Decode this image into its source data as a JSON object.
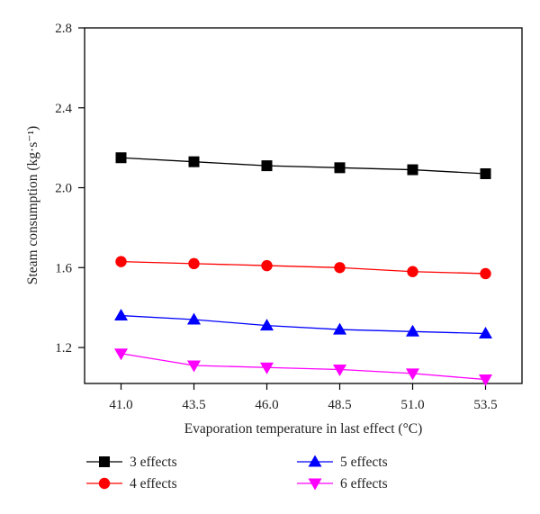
{
  "chart_data": {
    "type": "line",
    "title": "",
    "xlabel": "Evaporation temperature in last effect (°C)",
    "ylabel": "Steam consumption (kg·s⁻¹)",
    "categories": [
      "41.0",
      "43.5",
      "46.0",
      "48.5",
      "51.0",
      "53.5"
    ],
    "ylim": [
      1.02,
      2.8
    ],
    "yticks": [
      "1.2",
      "1.6",
      "2.0",
      "2.4",
      "2.8"
    ],
    "grid": false,
    "legend_position": "bottom",
    "series": [
      {
        "name": "3 effects",
        "color": "#000000",
        "marker": "square",
        "values": [
          2.15,
          2.13,
          2.11,
          2.1,
          2.09,
          2.07
        ]
      },
      {
        "name": "4 effects",
        "color": "#ff0000",
        "marker": "circle",
        "values": [
          1.63,
          1.62,
          1.61,
          1.6,
          1.58,
          1.57
        ]
      },
      {
        "name": "5 effects",
        "color": "#0000ff",
        "marker": "triangle-up",
        "values": [
          1.36,
          1.34,
          1.31,
          1.29,
          1.28,
          1.27
        ]
      },
      {
        "name": "6 effects",
        "color": "#ff00ff",
        "marker": "triangle-down",
        "values": [
          1.17,
          1.11,
          1.1,
          1.09,
          1.07,
          1.04
        ]
      }
    ]
  }
}
